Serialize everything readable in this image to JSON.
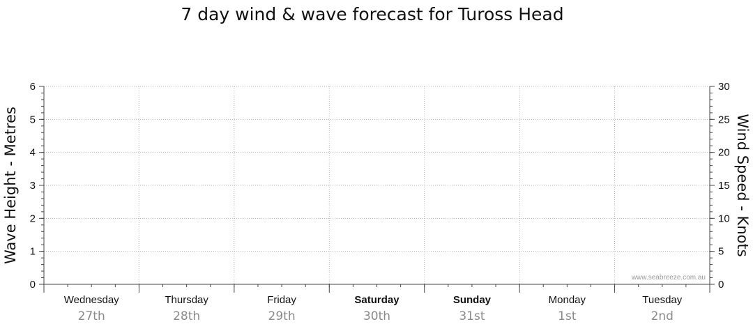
{
  "chart_data": {
    "type": "line",
    "title": "7 day wind & wave forecast for Tuross Head",
    "y_left_label": "Wave Height - Metres",
    "y_right_label": "Wind Speed - Knots",
    "y_left_range": [
      0,
      6
    ],
    "y_left_ticks": [
      "0",
      "1",
      "2",
      "3",
      "4",
      "5",
      "6"
    ],
    "y_right_range": [
      0,
      30
    ],
    "y_right_ticks": [
      "0",
      "5",
      "10",
      "15",
      "20",
      "25",
      "30"
    ],
    "days": [
      {
        "day": "Wednesday",
        "date": "27th",
        "bold": false
      },
      {
        "day": "Thursday",
        "date": "28th",
        "bold": false
      },
      {
        "day": "Friday",
        "date": "29th",
        "bold": false
      },
      {
        "day": "Saturday",
        "date": "30th",
        "bold": true
      },
      {
        "day": "Sunday",
        "date": "31st",
        "bold": true
      },
      {
        "day": "Monday",
        "date": "1st",
        "bold": false
      },
      {
        "day": "Tuesday",
        "date": "2nd",
        "bold": false
      }
    ],
    "grid": true,
    "series": [],
    "watermark": "www.seabreeze.com.au",
    "colors": {
      "grid": "#b0b0b0",
      "axis": "#444444",
      "date_text": "#8a8a8a"
    }
  }
}
